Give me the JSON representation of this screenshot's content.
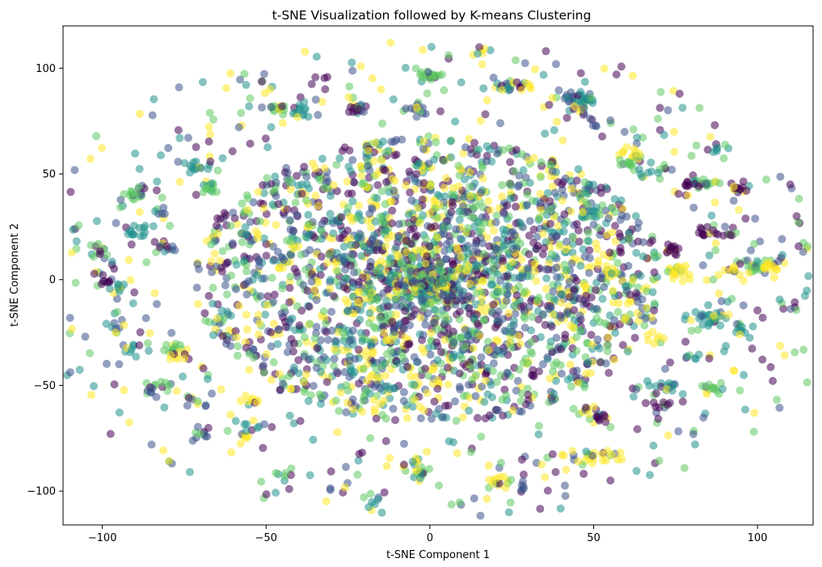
{
  "chart_data": {
    "type": "scatter",
    "title": "t-SNE Visualization followed by K-means Clustering",
    "xlabel": "t-SNE Component 1",
    "ylabel": "t-SNE Component 2",
    "xlim": [
      -112,
      117
    ],
    "ylim": [
      -116,
      120
    ],
    "xticks": [
      -100,
      -50,
      0,
      50,
      100
    ],
    "xtick_labels": [
      "−100",
      "−50",
      "0",
      "50",
      "100"
    ],
    "yticks": [
      -100,
      -50,
      0,
      50,
      100
    ],
    "ytick_labels": [
      "−100",
      "−50",
      "0",
      "50",
      "100"
    ],
    "grid": false,
    "legend": "none",
    "colormap": [
      "#440154",
      "#3b528b",
      "#21918c",
      "#5ec962",
      "#fde725"
    ],
    "point_opacity": 0.55,
    "clusters_note_visible": false,
    "core": {
      "center": [
        0,
        0
      ],
      "rx": 72,
      "ry": 68,
      "count": 2600
    },
    "points": [],
    "point_groups": [
      {
        "x": -90,
        "y": 40,
        "n": 14
      },
      {
        "x": -102,
        "y": 14,
        "n": 10
      },
      {
        "x": -100,
        "y": -1,
        "n": 8
      },
      {
        "x": -95,
        "y": -4,
        "n": 10
      },
      {
        "x": -90,
        "y": 22,
        "n": 12
      },
      {
        "x": -91,
        "y": -34,
        "n": 8
      },
      {
        "x": -95,
        "y": -22,
        "n": 8
      },
      {
        "x": -82,
        "y": 33,
        "n": 6
      },
      {
        "x": -72,
        "y": 53,
        "n": 12
      },
      {
        "x": -67,
        "y": 43,
        "n": 12
      },
      {
        "x": -81,
        "y": 15,
        "n": 10
      },
      {
        "x": -78,
        "y": -32,
        "n": 10
      },
      {
        "x": -76,
        "y": -36,
        "n": 10
      },
      {
        "x": -82,
        "y": -50,
        "n": 8
      },
      {
        "x": -86,
        "y": -52,
        "n": 6
      },
      {
        "x": -71,
        "y": -58,
        "n": 6
      },
      {
        "x": -71,
        "y": -73,
        "n": 8
      },
      {
        "x": -57,
        "y": -75,
        "n": 8
      },
      {
        "x": -55,
        "y": -68,
        "n": 8
      },
      {
        "x": -46,
        "y": 80,
        "n": 14
      },
      {
        "x": -40,
        "y": 80,
        "n": 14
      },
      {
        "x": -32,
        "y": 93,
        "n": 4
      },
      {
        "x": -22,
        "y": 81,
        "n": 14
      },
      {
        "x": -3,
        "y": 80,
        "n": 14
      },
      {
        "x": 0,
        "y": 97,
        "n": 20
      },
      {
        "x": 14,
        "y": 108,
        "n": 6
      },
      {
        "x": 22,
        "y": 92,
        "n": 14
      },
      {
        "x": 28,
        "y": 92,
        "n": 10
      },
      {
        "x": 43,
        "y": 86,
        "n": 14
      },
      {
        "x": 48,
        "y": 85,
        "n": 14
      },
      {
        "x": 46,
        "y": 79,
        "n": 10
      },
      {
        "x": 52,
        "y": 74,
        "n": 4
      },
      {
        "x": 62,
        "y": 60,
        "n": 12
      },
      {
        "x": 60,
        "y": 55,
        "n": 10
      },
      {
        "x": 66,
        "y": 51,
        "n": 8
      },
      {
        "x": 87,
        "y": 63,
        "n": 8
      },
      {
        "x": 84,
        "y": 46,
        "n": 14
      },
      {
        "x": 94,
        "y": 44,
        "n": 14
      },
      {
        "x": 80,
        "y": 45,
        "n": 10
      },
      {
        "x": 84,
        "y": 23,
        "n": 10
      },
      {
        "x": 90,
        "y": 22,
        "n": 8
      },
      {
        "x": 74,
        "y": 14,
        "n": 14
      },
      {
        "x": 74,
        "y": 6,
        "n": 12
      },
      {
        "x": 77,
        "y": 2,
        "n": 8
      },
      {
        "x": 100,
        "y": 6,
        "n": 16
      },
      {
        "x": 104,
        "y": 5,
        "n": 14
      },
      {
        "x": 93,
        "y": 4,
        "n": 10
      },
      {
        "x": 55,
        "y": 4,
        "n": 10
      },
      {
        "x": 49,
        "y": 32,
        "n": 10
      },
      {
        "x": 63,
        "y": -10,
        "n": 8
      },
      {
        "x": 82,
        "y": -17,
        "n": 14
      },
      {
        "x": 87,
        "y": -20,
        "n": 12
      },
      {
        "x": 95,
        "y": -23,
        "n": 12
      },
      {
        "x": 68,
        "y": -28,
        "n": 8
      },
      {
        "x": 80,
        "y": -36,
        "n": 6
      },
      {
        "x": 52,
        "y": -65,
        "n": 14
      },
      {
        "x": 48,
        "y": -62,
        "n": 10
      },
      {
        "x": 73,
        "y": -51,
        "n": 12
      },
      {
        "x": 86,
        "y": -52,
        "n": 12
      },
      {
        "x": 71,
        "y": -59,
        "n": 8
      },
      {
        "x": 50,
        "y": -83,
        "n": 12
      },
      {
        "x": 55,
        "y": -84,
        "n": 8
      },
      {
        "x": 21,
        "y": -96,
        "n": 14
      },
      {
        "x": 28,
        "y": -99,
        "n": 6
      },
      {
        "x": -2,
        "y": -91,
        "n": 10
      },
      {
        "x": -5,
        "y": -88,
        "n": 8
      },
      {
        "x": -16,
        "y": -105,
        "n": 4
      },
      {
        "x": -27,
        "y": -100,
        "n": 4
      },
      {
        "x": -45,
        "y": -92,
        "n": 6
      },
      {
        "x": -55,
        "y": -58,
        "n": 8
      },
      {
        "x": 42,
        "y": -83,
        "n": 6
      }
    ]
  }
}
